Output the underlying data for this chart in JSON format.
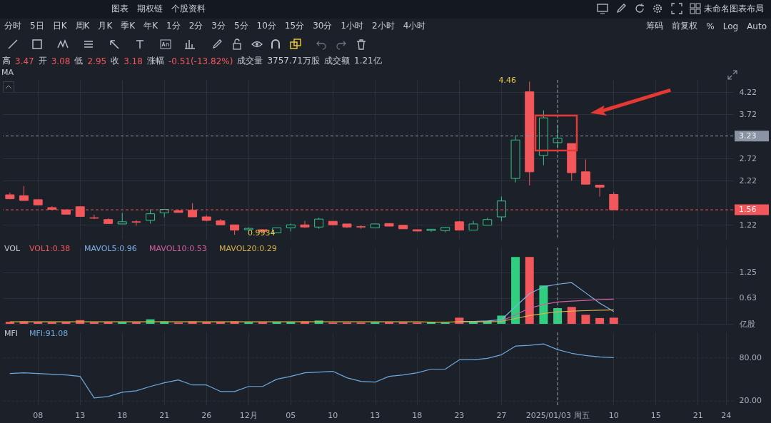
{
  "chart_data": [
    {
      "type": "other",
      "annotations": [
        "图表",
        "期权链",
        "个股资料"
      ]
    },
    {
      "type": "other",
      "annotations": [
        "未命名图表布局"
      ]
    },
    {
      "type": "other",
      "annotations": [
        "分时",
        "5日",
        "日K",
        "周K",
        "月K",
        "季K",
        "年K",
        "1分",
        "2分",
        "3分",
        "5分",
        "10分",
        "15分",
        "30分",
        "1小时",
        "2小时",
        "4小时"
      ]
    },
    {
      "type": "other",
      "annotations": [
        "筹码",
        "前复权",
        "%",
        "Log",
        "Auto"
      ]
    },
    {
      "type": "other",
      "annotations": [
        "高",
        "3.47",
        "开",
        "3.08",
        "低",
        "2.95",
        "收",
        "3.18",
        "涨幅",
        "-0.51(-13.82%)",
        "成交量",
        "3757.71万股",
        "成交额",
        "1.21亿"
      ],
      "colors": [
        "#c8ccd3",
        "#f2575b",
        "#c8ccd3",
        "#f2575b",
        "#c8ccd3",
        "#f2575b",
        "#c8ccd3",
        "#f2575b",
        "#c8ccd3",
        "#f2575b",
        "#c8ccd3",
        "#c8ccd3",
        "#c8ccd3",
        "#c8ccd3"
      ]
    },
    {
      "type": "candlestick",
      "categories": [
        null,
        null,
        "08",
        null,
        null,
        "13",
        null,
        null,
        "18",
        null,
        null,
        "21",
        null,
        null,
        "26",
        null,
        null,
        "12月",
        null,
        null,
        "05",
        null,
        null,
        "10",
        null,
        null,
        "13",
        null,
        null,
        "18",
        null,
        null,
        "23",
        null,
        null,
        "27",
        null,
        null,
        null,
        "2025/01/03 周五",
        null,
        null,
        null,
        "10",
        null,
        null,
        "15",
        null,
        null,
        "21",
        null,
        "24"
      ],
      "ohlc": [
        [
          1.9,
          1.95,
          1.8,
          1.81
        ],
        [
          1.88,
          2.1,
          1.77,
          1.77
        ],
        [
          1.79,
          1.79,
          1.67,
          1.67
        ],
        [
          1.61,
          1.64,
          1.56,
          1.57
        ],
        [
          1.56,
          1.56,
          1.46,
          1.46
        ],
        [
          1.63,
          1.63,
          1.41,
          1.41
        ],
        [
          1.38,
          1.45,
          1.35,
          1.37
        ],
        [
          1.34,
          1.37,
          1.24,
          1.25
        ],
        [
          1.24,
          1.49,
          1.24,
          1.29
        ],
        [
          1.29,
          1.33,
          1.2,
          1.28
        ],
        [
          1.32,
          1.57,
          1.25,
          1.47
        ],
        [
          1.49,
          1.57,
          1.39,
          1.57
        ],
        [
          1.54,
          1.56,
          1.5,
          1.5
        ],
        [
          1.55,
          1.71,
          1.4,
          1.4
        ],
        [
          1.4,
          1.44,
          1.3,
          1.32
        ],
        [
          1.31,
          1.35,
          1.22,
          1.22
        ],
        [
          1.22,
          1.22,
          0.9934,
          1.1
        ],
        [
          1.11,
          1.16,
          1.1,
          1.14
        ],
        [
          1.11,
          1.11,
          1.06,
          1.07
        ],
        [
          1.04,
          1.15,
          1.04,
          1.15
        ],
        [
          1.15,
          1.25,
          1.07,
          1.22
        ],
        [
          1.22,
          1.31,
          1.15,
          1.17
        ],
        [
          1.17,
          1.38,
          1.13,
          1.35
        ],
        [
          1.3,
          1.3,
          1.22,
          1.22
        ],
        [
          1.24,
          1.24,
          1.15,
          1.17
        ],
        [
          1.18,
          1.21,
          1.13,
          1.17
        ],
        [
          1.15,
          1.24,
          1.15,
          1.24
        ],
        [
          1.25,
          1.25,
          1.19,
          1.19
        ],
        [
          1.21,
          1.21,
          1.13,
          1.13
        ],
        [
          1.11,
          1.11,
          1.07,
          1.08
        ],
        [
          1.09,
          1.12,
          1.06,
          1.12
        ],
        [
          1.09,
          1.17,
          1.05,
          1.16
        ],
        [
          1.29,
          1.31,
          1.09,
          1.1
        ],
        [
          1.1,
          1.31,
          1.1,
          1.24
        ],
        [
          1.21,
          1.38,
          1.21,
          1.34
        ],
        [
          1.4,
          1.86,
          1.3,
          1.76
        ],
        [
          2.27,
          3.24,
          2.18,
          3.14
        ],
        [
          4.23,
          4.46,
          2.11,
          2.42
        ],
        [
          2.79,
          3.81,
          2.57,
          3.64
        ],
        [
          3.08,
          3.47,
          2.95,
          3.18
        ],
        [
          3.06,
          3.06,
          2.22,
          2.4
        ],
        [
          2.42,
          2.7,
          2.14,
          2.14
        ],
        [
          2.12,
          2.12,
          1.86,
          2.07
        ],
        [
          1.91,
          1.96,
          1.56,
          1.56
        ],
        null,
        null,
        null,
        null,
        null,
        null,
        null,
        null
      ],
      "colors": [
        "#f2575b",
        "#f2575b",
        "#f2575b",
        "#f2575b",
        "#f2575b",
        "#f2575b",
        "#f2575b",
        "#f2575b",
        "#36c28a",
        "#f2575b",
        "#36c28a",
        "#36c28a",
        "#f2575b",
        "#f2575b",
        "#f2575b",
        "#f2575b",
        "#f2575b",
        "#36c28a",
        "#f2575b",
        "#36c28a",
        "#36c28a",
        "#f2575b",
        "#36c28a",
        "#f2575b",
        "#f2575b",
        "#f2575b",
        "#36c28a",
        "#f2575b",
        "#f2575b",
        "#f2575b",
        "#36c28a",
        "#36c28a",
        "#f2575b",
        "#36c28a",
        "#36c28a",
        "#36c28a",
        "#36c28a",
        "#f2575b",
        "#36c28a",
        "#36c28a",
        "#f2575b",
        "#f2575b",
        "#f2575b",
        "#f2575b",
        null,
        null,
        null,
        null,
        null,
        null,
        null,
        null
      ],
      "ylim": [
        0.9,
        4.5
      ],
      "yticks": [
        1.22,
        2.22,
        2.72,
        3.72,
        4.22
      ],
      "grid": true,
      "tick_labels": "y",
      "ref_lines": [
        {
          "axis": "y",
          "value": 3.23,
          "label": "3.23",
          "color": "#8a93a3",
          "line_style": "dashed"
        },
        {
          "axis": "y",
          "value": 1.56,
          "label": "1.56",
          "color": "#f2575b",
          "line_style": "dashed"
        },
        {
          "axis": "x",
          "value": "2025/01/03 周五",
          "color": "#9aa1ad",
          "line_style": "dashed"
        }
      ],
      "annotations": [
        "MA",
        "4.46",
        "0.9934"
      ]
    },
    {
      "type": "bar",
      "categories": [
        null,
        null,
        "08",
        null,
        null,
        "13",
        null,
        null,
        "18",
        null,
        null,
        "21",
        null,
        null,
        "26",
        null,
        null,
        "12月",
        null,
        null,
        "05",
        null,
        null,
        "10",
        null,
        null,
        "13",
        null,
        null,
        "18",
        null,
        null,
        "23",
        null,
        null,
        "27",
        null,
        null,
        null,
        "2025/01/03 周五",
        null,
        null,
        null,
        "10",
        null,
        null,
        "15",
        null,
        null,
        "21",
        null,
        "24"
      ],
      "series": [
        {
          "name": "VOL1:0.38",
          "type": "bar",
          "color": "#f2575b",
          "values": [
            0.05,
            0.06,
            0.05,
            0.04,
            0.05,
            0.09,
            0.04,
            0.05,
            0.05,
            0.04,
            0.11,
            0.06,
            0.03,
            0.06,
            0.05,
            0.05,
            0.06,
            0.04,
            0.04,
            0.05,
            0.05,
            0.06,
            0.08,
            0.03,
            0.03,
            0.03,
            0.04,
            0.04,
            0.04,
            0.03,
            0.04,
            0.03,
            0.15,
            0.05,
            0.07,
            0.2,
            1.62,
            1.62,
            0.93,
            0.38,
            0.41,
            0.22,
            0.14,
            0.15,
            null,
            null,
            null,
            null,
            null,
            null,
            null,
            null
          ],
          "colors": [
            "#f2575b",
            "#f2575b",
            "#f2575b",
            "#f2575b",
            "#f2575b",
            "#f2575b",
            "#f2575b",
            "#f2575b",
            "#2fcf7f",
            "#f2575b",
            "#2fcf7f",
            "#2fcf7f",
            "#f2575b",
            "#f2575b",
            "#f2575b",
            "#f2575b",
            "#f2575b",
            "#2fcf7f",
            "#f2575b",
            "#2fcf7f",
            "#2fcf7f",
            "#f2575b",
            "#2fcf7f",
            "#f2575b",
            "#f2575b",
            "#f2575b",
            "#2fcf7f",
            "#f2575b",
            "#f2575b",
            "#f2575b",
            "#2fcf7f",
            "#2fcf7f",
            "#f2575b",
            "#2fcf7f",
            "#2fcf7f",
            "#2fcf7f",
            "#2fcf7f",
            "#f2575b",
            "#2fcf7f",
            "#2fcf7f",
            "#f2575b",
            "#f2575b",
            "#f2575b",
            "#f2575b",
            null,
            null,
            null,
            null,
            null,
            null,
            null,
            null
          ]
        },
        {
          "name": "MAVOL5:0.96",
          "type": "line",
          "color": "#7fb0e6",
          "values": [
            null,
            null,
            null,
            null,
            null,
            null,
            null,
            null,
            null,
            null,
            null,
            null,
            null,
            null,
            null,
            null,
            null,
            null,
            null,
            null,
            null,
            null,
            null,
            null,
            null,
            null,
            null,
            null,
            null,
            null,
            null,
            null,
            0.06,
            0.06,
            0.07,
            0.1,
            0.42,
            0.73,
            0.9,
            0.96,
            1.0,
            0.75,
            0.5,
            0.3,
            null,
            null,
            null,
            null,
            null,
            null,
            null,
            null
          ]
        },
        {
          "name": "MAVOL10:0.53",
          "type": "line",
          "color": "#d25fa0",
          "values": [
            null,
            null,
            null,
            null,
            null,
            null,
            null,
            null,
            null,
            null,
            null,
            null,
            null,
            null,
            null,
            null,
            null,
            null,
            null,
            null,
            null,
            null,
            null,
            null,
            null,
            null,
            null,
            null,
            null,
            null,
            null,
            null,
            null,
            null,
            null,
            0.07,
            0.22,
            0.38,
            0.47,
            0.53,
            0.55,
            0.57,
            0.59,
            0.6,
            null,
            null,
            null,
            null,
            null,
            null,
            null,
            null
          ]
        },
        {
          "name": "MAVOL20:0.29",
          "type": "line",
          "color": "#d6b24c",
          "values": [
            0.05,
            0.05,
            0.05,
            0.05,
            0.05,
            0.05,
            0.05,
            0.05,
            0.05,
            0.05,
            0.05,
            0.05,
            0.05,
            0.05,
            0.05,
            0.05,
            0.05,
            0.05,
            0.05,
            0.05,
            0.05,
            0.05,
            0.05,
            0.05,
            0.05,
            0.05,
            0.05,
            0.05,
            0.05,
            0.05,
            0.04,
            0.04,
            0.05,
            0.05,
            0.05,
            0.06,
            0.13,
            0.2,
            0.25,
            0.29,
            0.31,
            0.32,
            0.33,
            0.34,
            null,
            null,
            null,
            null,
            null,
            null,
            null,
            null
          ]
        }
      ],
      "legend_title": "VOL",
      "legend": "top left",
      "ylim": [
        0,
        1.85
      ],
      "yticks": [
        {
          "value": 0,
          "label": "亿股"
        },
        0.63,
        1.25
      ],
      "grid": true,
      "tick_labels": "y",
      "ref_lines": [
        {
          "axis": "x",
          "value": "2025/01/03 周五",
          "color": "#9aa1ad",
          "line_style": "dashed"
        }
      ]
    },
    {
      "type": "line",
      "categories": [
        null,
        null,
        "08",
        null,
        null,
        "13",
        null,
        null,
        "18",
        null,
        null,
        "21",
        null,
        null,
        "26",
        null,
        null,
        "12月",
        null,
        null,
        "05",
        null,
        null,
        "10",
        null,
        null,
        "13",
        null,
        null,
        "18",
        null,
        null,
        "23",
        null,
        null,
        "27",
        null,
        null,
        null,
        "2025/01/03 周五",
        null,
        null,
        null,
        "10",
        null,
        null,
        "15",
        null,
        null,
        "21",
        null,
        "24"
      ],
      "series": [
        {
          "name": "MFI:91.08",
          "color": "#6fa8dc",
          "values": [
            58,
            59,
            58,
            57,
            56,
            54,
            24,
            26,
            32,
            34,
            40,
            45,
            49,
            42,
            42,
            33,
            33,
            40,
            40,
            50,
            54,
            59,
            60,
            61,
            52,
            47,
            46,
            54,
            56,
            59,
            64,
            64,
            77,
            77,
            79,
            84,
            96,
            97,
            99,
            91.08,
            86,
            83,
            81,
            80,
            null,
            null,
            null,
            null,
            null,
            null,
            null,
            null
          ]
        }
      ],
      "legend_title": "MFI",
      "legend": "top left",
      "ylim": [
        14,
        115
      ],
      "yticks": [
        {
          "value": 20,
          "label": "20.00"
        },
        {
          "value": 80,
          "label": "80.00"
        }
      ],
      "grid": true,
      "ref_lines": [
        {
          "axis": "x",
          "value": "2025/01/03 周五",
          "color": "#9aa1ad",
          "line_style": "dashed"
        }
      ]
    }
  ]
}
